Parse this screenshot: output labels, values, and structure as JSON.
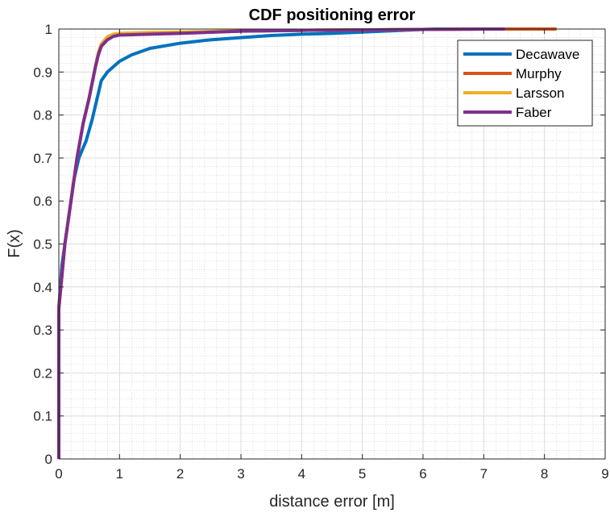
{
  "chart_data": {
    "type": "line",
    "title": "CDF positioning error",
    "xlabel": "distance error [m]",
    "ylabel": "F(x)",
    "xlim": [
      0,
      9
    ],
    "ylim": [
      0,
      1
    ],
    "x_ticks": [
      "0",
      "1",
      "2",
      "3",
      "4",
      "5",
      "6",
      "7",
      "8",
      "9"
    ],
    "y_ticks": [
      "0",
      "0.1",
      "0.2",
      "0.3",
      "0.4",
      "0.5",
      "0.6",
      "0.7",
      "0.8",
      "0.9",
      "1"
    ],
    "grid": "major and minor",
    "legend_position": "top-right",
    "series": [
      {
        "name": "Decawave",
        "color": "#0072BD",
        "points": [
          [
            0,
            0
          ],
          [
            0,
            0.35
          ],
          [
            0.05,
            0.45
          ],
          [
            0.15,
            0.55
          ],
          [
            0.25,
            0.65
          ],
          [
            0.33,
            0.7
          ],
          [
            0.45,
            0.74
          ],
          [
            0.55,
            0.79
          ],
          [
            0.6,
            0.82
          ],
          [
            0.65,
            0.85
          ],
          [
            0.7,
            0.88
          ],
          [
            0.8,
            0.9
          ],
          [
            1.0,
            0.925
          ],
          [
            1.2,
            0.94
          ],
          [
            1.5,
            0.955
          ],
          [
            2.0,
            0.967
          ],
          [
            2.5,
            0.975
          ],
          [
            3.0,
            0.98
          ],
          [
            3.5,
            0.985
          ],
          [
            4.0,
            0.988
          ],
          [
            4.5,
            0.99
          ],
          [
            5.0,
            0.993
          ],
          [
            5.5,
            0.996
          ],
          [
            6.0,
            0.999
          ],
          [
            6.2,
            1.0
          ],
          [
            7.35,
            1.0
          ]
        ]
      },
      {
        "name": "Murphy",
        "color": "#D95319",
        "points": [
          [
            0,
            0
          ],
          [
            0,
            0.35
          ],
          [
            0.1,
            0.5
          ],
          [
            0.2,
            0.6
          ],
          [
            0.3,
            0.7
          ],
          [
            0.4,
            0.78
          ],
          [
            0.5,
            0.84
          ],
          [
            0.6,
            0.91
          ],
          [
            0.65,
            0.94
          ],
          [
            0.7,
            0.96
          ],
          [
            0.8,
            0.978
          ],
          [
            0.9,
            0.985
          ],
          [
            1.0,
            0.988
          ],
          [
            1.5,
            0.99
          ],
          [
            2.0,
            0.991
          ],
          [
            3.0,
            0.995
          ],
          [
            4.0,
            0.997
          ],
          [
            5.0,
            0.998
          ],
          [
            6.0,
            0.999
          ],
          [
            7.0,
            1.0
          ],
          [
            8.2,
            1.0
          ]
        ]
      },
      {
        "name": "Larsson",
        "color": "#EDB120",
        "points": [
          [
            0,
            0
          ],
          [
            0,
            0.35
          ],
          [
            0.1,
            0.5
          ],
          [
            0.2,
            0.6
          ],
          [
            0.3,
            0.7
          ],
          [
            0.4,
            0.78
          ],
          [
            0.5,
            0.84
          ],
          [
            0.6,
            0.91
          ],
          [
            0.65,
            0.945
          ],
          [
            0.7,
            0.965
          ],
          [
            0.8,
            0.982
          ],
          [
            0.9,
            0.988
          ],
          [
            1.0,
            0.99
          ],
          [
            1.5,
            0.992
          ],
          [
            2.0,
            0.993
          ],
          [
            3.0,
            0.996
          ],
          [
            4.0,
            0.997
          ],
          [
            5.0,
            0.998
          ],
          [
            6.0,
            0.999
          ],
          [
            7.0,
            1.0
          ],
          [
            7.35,
            1.0
          ]
        ]
      },
      {
        "name": "Faber",
        "color": "#7E2F8E",
        "points": [
          [
            0,
            0
          ],
          [
            0,
            0.35
          ],
          [
            0.1,
            0.5
          ],
          [
            0.2,
            0.6
          ],
          [
            0.3,
            0.7
          ],
          [
            0.4,
            0.78
          ],
          [
            0.5,
            0.84
          ],
          [
            0.6,
            0.91
          ],
          [
            0.65,
            0.94
          ],
          [
            0.7,
            0.96
          ],
          [
            0.8,
            0.975
          ],
          [
            0.9,
            0.983
          ],
          [
            1.0,
            0.986
          ],
          [
            1.5,
            0.988
          ],
          [
            2.0,
            0.99
          ],
          [
            3.0,
            0.995
          ],
          [
            4.0,
            0.997
          ],
          [
            5.0,
            0.998
          ],
          [
            6.0,
            0.999
          ],
          [
            7.0,
            1.0
          ],
          [
            7.35,
            1.0
          ]
        ]
      }
    ]
  }
}
